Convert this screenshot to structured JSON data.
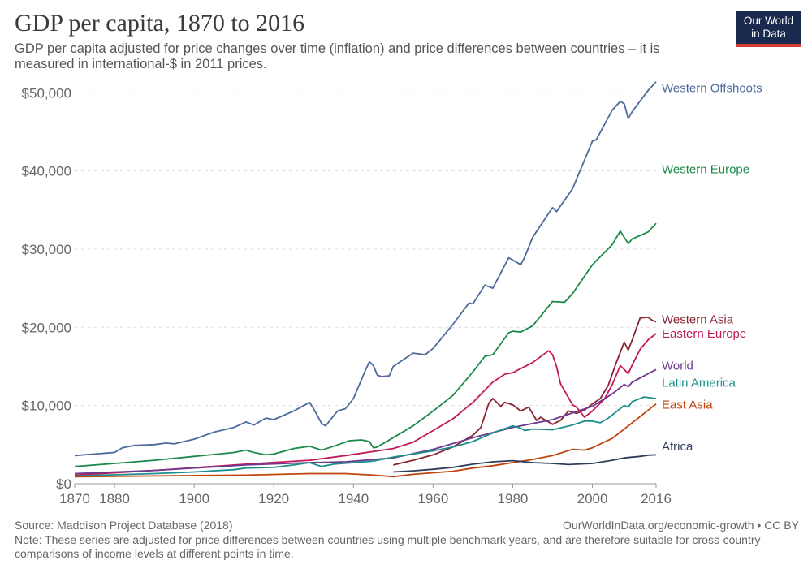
{
  "header": {
    "title": "GDP per capita, 1870 to 2016",
    "subtitle": "GDP per capita adjusted for price changes over time (inflation) and price differences between countries – it is measured in international-$ in 2011 prices."
  },
  "logo": {
    "line1": "Our World",
    "line2": "in Data",
    "bg_color": "#1a2a4f",
    "accent_color": "#d33b32"
  },
  "footer": {
    "source": "Source: Maddison Project Database (2018)",
    "url": "OurWorldInData.org/economic-growth • CC BY",
    "note": "Note: These series are adjusted for price differences between countries using multiple benchmark years, and are therefore suitable for cross-country comparisons of income levels at different points in time."
  },
  "chart_data": {
    "type": "line",
    "xlim": [
      1870,
      2016
    ],
    "ylim": [
      0,
      52000
    ],
    "x_ticks": [
      1870,
      1880,
      1900,
      1920,
      1940,
      1960,
      1980,
      2000,
      2016
    ],
    "y_ticks": [
      0,
      10000,
      20000,
      30000,
      40000,
      50000
    ],
    "y_tick_labels": [
      "$0",
      "$10,000",
      "$20,000",
      "$30,000",
      "$40,000",
      "$50,000"
    ],
    "grid": "horizontal dashed",
    "legend": "right, labels at line ends",
    "series": [
      {
        "name": "Western Offshoots",
        "color": "#4c6a9c",
        "label_y": 50600,
        "points": [
          [
            1870,
            3600
          ],
          [
            1875,
            3800
          ],
          [
            1880,
            4000
          ],
          [
            1882,
            4600
          ],
          [
            1885,
            4900
          ],
          [
            1890,
            5000
          ],
          [
            1893,
            5200
          ],
          [
            1895,
            5100
          ],
          [
            1900,
            5700
          ],
          [
            1905,
            6600
          ],
          [
            1910,
            7200
          ],
          [
            1913,
            7900
          ],
          [
            1915,
            7500
          ],
          [
            1918,
            8400
          ],
          [
            1920,
            8200
          ],
          [
            1925,
            9300
          ],
          [
            1929,
            10400
          ],
          [
            1930,
            9600
          ],
          [
            1932,
            7700
          ],
          [
            1933,
            7400
          ],
          [
            1936,
            9300
          ],
          [
            1938,
            9600
          ],
          [
            1940,
            10900
          ],
          [
            1943,
            14500
          ],
          [
            1944,
            15600
          ],
          [
            1945,
            15100
          ],
          [
            1946,
            13900
          ],
          [
            1947,
            13700
          ],
          [
            1949,
            13800
          ],
          [
            1950,
            15000
          ],
          [
            1955,
            16700
          ],
          [
            1958,
            16500
          ],
          [
            1960,
            17300
          ],
          [
            1965,
            20400
          ],
          [
            1969,
            23100
          ],
          [
            1970,
            23000
          ],
          [
            1973,
            25400
          ],
          [
            1975,
            25000
          ],
          [
            1979,
            28900
          ],
          [
            1980,
            28600
          ],
          [
            1982,
            28000
          ],
          [
            1983,
            29000
          ],
          [
            1985,
            31500
          ],
          [
            1988,
            33800
          ],
          [
            1990,
            35300
          ],
          [
            1991,
            34800
          ],
          [
            1995,
            37700
          ],
          [
            2000,
            43800
          ],
          [
            2001,
            44000
          ],
          [
            2005,
            47800
          ],
          [
            2007,
            48900
          ],
          [
            2008,
            48600
          ],
          [
            2009,
            46700
          ],
          [
            2010,
            47600
          ],
          [
            2014,
            50300
          ],
          [
            2016,
            51400
          ]
        ]
      },
      {
        "name": "Western Europe",
        "color": "#1b8a4a",
        "label_y": 40200,
        "points": [
          [
            1870,
            2200
          ],
          [
            1880,
            2600
          ],
          [
            1890,
            3000
          ],
          [
            1900,
            3500
          ],
          [
            1910,
            4000
          ],
          [
            1913,
            4300
          ],
          [
            1915,
            4000
          ],
          [
            1918,
            3700
          ],
          [
            1920,
            3800
          ],
          [
            1925,
            4500
          ],
          [
            1929,
            4800
          ],
          [
            1932,
            4300
          ],
          [
            1935,
            4800
          ],
          [
            1939,
            5500
          ],
          [
            1942,
            5600
          ],
          [
            1944,
            5400
          ],
          [
            1945,
            4600
          ],
          [
            1946,
            4700
          ],
          [
            1950,
            5900
          ],
          [
            1955,
            7400
          ],
          [
            1960,
            9300
          ],
          [
            1965,
            11300
          ],
          [
            1970,
            14300
          ],
          [
            1973,
            16300
          ],
          [
            1975,
            16500
          ],
          [
            1979,
            19300
          ],
          [
            1980,
            19500
          ],
          [
            1982,
            19400
          ],
          [
            1985,
            20200
          ],
          [
            1990,
            23300
          ],
          [
            1993,
            23200
          ],
          [
            1995,
            24300
          ],
          [
            2000,
            28000
          ],
          [
            2005,
            30600
          ],
          [
            2007,
            32300
          ],
          [
            2009,
            30700
          ],
          [
            2010,
            31300
          ],
          [
            2014,
            32200
          ],
          [
            2016,
            33300
          ]
        ]
      },
      {
        "name": "Western Asia",
        "color": "#8b2332",
        "label_y": 21000,
        "points": [
          [
            1950,
            2400
          ],
          [
            1955,
            3000
          ],
          [
            1960,
            3700
          ],
          [
            1965,
            4700
          ],
          [
            1970,
            6200
          ],
          [
            1972,
            7200
          ],
          [
            1974,
            10300
          ],
          [
            1975,
            10900
          ],
          [
            1977,
            9900
          ],
          [
            1978,
            10400
          ],
          [
            1980,
            10100
          ],
          [
            1982,
            9300
          ],
          [
            1984,
            9800
          ],
          [
            1986,
            8100
          ],
          [
            1987,
            8500
          ],
          [
            1990,
            7600
          ],
          [
            1992,
            8100
          ],
          [
            1994,
            9300
          ],
          [
            1996,
            9000
          ],
          [
            1998,
            9400
          ],
          [
            2000,
            10200
          ],
          [
            2002,
            10900
          ],
          [
            2004,
            12600
          ],
          [
            2006,
            15500
          ],
          [
            2008,
            18100
          ],
          [
            2009,
            17100
          ],
          [
            2010,
            18400
          ],
          [
            2012,
            21200
          ],
          [
            2014,
            21300
          ],
          [
            2015,
            20900
          ],
          [
            2016,
            20700
          ]
        ]
      },
      {
        "name": "Eastern Europe",
        "color": "#c2185b",
        "label_y": 19200,
        "points": [
          [
            1870,
            1100
          ],
          [
            1890,
            1700
          ],
          [
            1913,
            2500
          ],
          [
            1929,
            3000
          ],
          [
            1938,
            3600
          ],
          [
            1950,
            4500
          ],
          [
            1955,
            5300
          ],
          [
            1960,
            6800
          ],
          [
            1965,
            8300
          ],
          [
            1970,
            10400
          ],
          [
            1975,
            13000
          ],
          [
            1978,
            14000
          ],
          [
            1980,
            14200
          ],
          [
            1985,
            15500
          ],
          [
            1989,
            17000
          ],
          [
            1990,
            16500
          ],
          [
            1991,
            15000
          ],
          [
            1992,
            12800
          ],
          [
            1995,
            10100
          ],
          [
            1996,
            9800
          ],
          [
            1997,
            9200
          ],
          [
            1998,
            8500
          ],
          [
            2000,
            9300
          ],
          [
            2003,
            10800
          ],
          [
            2005,
            12700
          ],
          [
            2007,
            15100
          ],
          [
            2009,
            14100
          ],
          [
            2010,
            15200
          ],
          [
            2012,
            17200
          ],
          [
            2014,
            18400
          ],
          [
            2016,
            19200
          ]
        ]
      },
      {
        "name": "World",
        "color": "#6d3a8e",
        "label_y": 15100,
        "points": [
          [
            1870,
            1300
          ],
          [
            1890,
            1700
          ],
          [
            1913,
            2400
          ],
          [
            1929,
            2700
          ],
          [
            1938,
            2800
          ],
          [
            1950,
            3300
          ],
          [
            1960,
            4400
          ],
          [
            1970,
            5900
          ],
          [
            1980,
            7200
          ],
          [
            1990,
            8200
          ],
          [
            2000,
            9900
          ],
          [
            2005,
            11500
          ],
          [
            2008,
            12700
          ],
          [
            2009,
            12400
          ],
          [
            2010,
            13000
          ],
          [
            2016,
            14600
          ]
        ]
      },
      {
        "name": "Latin America",
        "color": "#1a8e8a",
        "label_y": 12900,
        "points": [
          [
            1870,
            1000
          ],
          [
            1890,
            1300
          ],
          [
            1900,
            1500
          ],
          [
            1910,
            1800
          ],
          [
            1913,
            2000
          ],
          [
            1920,
            2100
          ],
          [
            1925,
            2400
          ],
          [
            1929,
            2700
          ],
          [
            1932,
            2200
          ],
          [
            1935,
            2500
          ],
          [
            1940,
            2700
          ],
          [
            1945,
            2900
          ],
          [
            1950,
            3400
          ],
          [
            1955,
            3800
          ],
          [
            1960,
            4200
          ],
          [
            1965,
            4700
          ],
          [
            1970,
            5400
          ],
          [
            1975,
            6500
          ],
          [
            1980,
            7400
          ],
          [
            1982,
            7100
          ],
          [
            1983,
            6800
          ],
          [
            1985,
            7000
          ],
          [
            1990,
            6900
          ],
          [
            1995,
            7500
          ],
          [
            1998,
            8000
          ],
          [
            2000,
            8000
          ],
          [
            2002,
            7800
          ],
          [
            2004,
            8400
          ],
          [
            2008,
            10000
          ],
          [
            2009,
            9800
          ],
          [
            2010,
            10500
          ],
          [
            2013,
            11100
          ],
          [
            2016,
            10900
          ]
        ]
      },
      {
        "name": "East Asia",
        "color": "#c0440d",
        "label_y": 10100,
        "points": [
          [
            1870,
            900
          ],
          [
            1890,
            1000
          ],
          [
            1913,
            1100
          ],
          [
            1929,
            1300
          ],
          [
            1938,
            1300
          ],
          [
            1945,
            1100
          ],
          [
            1950,
            900
          ],
          [
            1955,
            1200
          ],
          [
            1960,
            1400
          ],
          [
            1965,
            1600
          ],
          [
            1970,
            2000
          ],
          [
            1975,
            2300
          ],
          [
            1980,
            2700
          ],
          [
            1985,
            3100
          ],
          [
            1990,
            3600
          ],
          [
            1995,
            4400
          ],
          [
            1998,
            4300
          ],
          [
            2000,
            4600
          ],
          [
            2005,
            5800
          ],
          [
            2010,
            7800
          ],
          [
            2013,
            9000
          ],
          [
            2016,
            10200
          ]
        ]
      },
      {
        "name": "Africa",
        "color": "#2f3d5a",
        "label_y": 4800,
        "points": [
          [
            1950,
            1500
          ],
          [
            1955,
            1650
          ],
          [
            1960,
            1850
          ],
          [
            1965,
            2100
          ],
          [
            1970,
            2500
          ],
          [
            1975,
            2800
          ],
          [
            1980,
            2950
          ],
          [
            1985,
            2700
          ],
          [
            1990,
            2600
          ],
          [
            1994,
            2450
          ],
          [
            1995,
            2480
          ],
          [
            2000,
            2600
          ],
          [
            2005,
            3000
          ],
          [
            2008,
            3300
          ],
          [
            2010,
            3400
          ],
          [
            2012,
            3500
          ],
          [
            2014,
            3650
          ],
          [
            2016,
            3700
          ]
        ]
      }
    ]
  }
}
